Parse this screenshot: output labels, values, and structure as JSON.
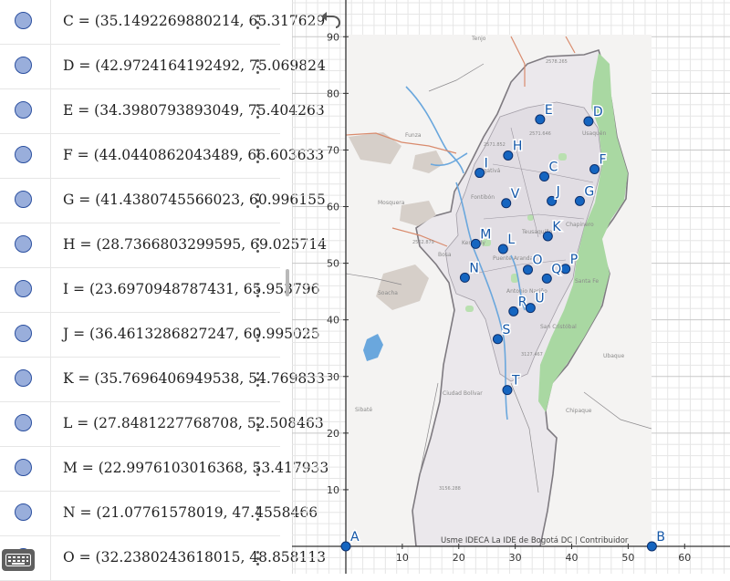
{
  "algebra_view": {
    "rows": [
      {
        "expr": "C = (35.1492269880214, 65.317629"
      },
      {
        "expr": "D = (42.9724164192492, 75.069824"
      },
      {
        "expr": "E = (34.3980793893049, 75.404263"
      },
      {
        "expr": "F = (44.0440862043489, 66.603633"
      },
      {
        "expr": "G = (41.4380745566023, 60.996155"
      },
      {
        "expr": "H = (28.7366803299595, 69.025714"
      },
      {
        "expr": "I = (23.6970948787431, 65.953796"
      },
      {
        "expr": "J = (36.4613286827247, 60.995025"
      },
      {
        "expr": "K = (35.7696406949538, 54.769833"
      },
      {
        "expr": "L = (27.8481227768708, 52.508463"
      },
      {
        "expr": "M = (22.9976103016368, 53.417933"
      },
      {
        "expr": "N = (21.07761578019, 47.4558466"
      },
      {
        "expr": "O = (32.2380243618015, 48.858113"
      }
    ]
  },
  "graphics_view": {
    "x_ticks": [
      "10",
      "20",
      "30",
      "40",
      "50",
      "60"
    ],
    "y_ticks": [
      "10",
      "20",
      "30",
      "40",
      "50",
      "60",
      "70",
      "80",
      "90"
    ],
    "attribution": "Usme IDECA La IDE de Bogotá DC | Contribuidor",
    "map_labels": {
      "tenjo": "Tenjo",
      "funza": "Funza",
      "mosquera": "Mosquera",
      "usaquen": "Usaquén",
      "engativa": "Engativá",
      "fontibon": "Fontibón",
      "chapinero": "Chapinero",
      "teusaquillo": "Teusaquillo",
      "kennedy": "Kennedy",
      "bosa": "Bosa",
      "puente_aranda": "Puente Aranda",
      "santa_fe": "Santa Fe",
      "soacha": "Soacha",
      "sibate": "Sibaté",
      "ciudad_bolivar": "Ciudad Bolívar",
      "san_cristobal": "San Cristóbal",
      "ubaque": "Ubaque",
      "chipaque": "Chipaque",
      "antonio_narino": "Antonio Nariño",
      "elev1": "2578.265",
      "elev2": "2562.879",
      "elev3": "3127.467",
      "elev4": "3156.288",
      "elev5": "2571.852",
      "elev6": "2571.646"
    },
    "points": [
      {
        "label": "A",
        "x": 0,
        "y": 0
      },
      {
        "label": "B",
        "x": 54.2,
        "y": 0
      },
      {
        "label": "C",
        "x": 35.1492269880214,
        "y": 65.317629
      },
      {
        "label": "D",
        "x": 42.9724164192492,
        "y": 75.069824
      },
      {
        "label": "E",
        "x": 34.3980793893049,
        "y": 75.404263
      },
      {
        "label": "F",
        "x": 44.0440862043489,
        "y": 66.603633
      },
      {
        "label": "G",
        "x": 41.4380745566023,
        "y": 60.996155
      },
      {
        "label": "H",
        "x": 28.7366803299595,
        "y": 69.025714
      },
      {
        "label": "I",
        "x": 23.6970948787431,
        "y": 65.953796
      },
      {
        "label": "J",
        "x": 36.4613286827247,
        "y": 60.995025
      },
      {
        "label": "K",
        "x": 35.7696406949538,
        "y": 54.769833
      },
      {
        "label": "L",
        "x": 27.8481227768708,
        "y": 52.508463
      },
      {
        "label": "M",
        "x": 22.9976103016368,
        "y": 53.417933
      },
      {
        "label": "N",
        "x": 21.07761578019,
        "y": 47.4558466
      },
      {
        "label": "O",
        "x": 32.2380243618015,
        "y": 48.858113
      },
      {
        "label": "P",
        "x": 38.9,
        "y": 49.0
      },
      {
        "label": "Q",
        "x": 35.6,
        "y": 47.3
      },
      {
        "label": "R",
        "x": 29.7,
        "y": 41.5
      },
      {
        "label": "U",
        "x": 32.7,
        "y": 42.1
      },
      {
        "label": "S",
        "x": 26.9,
        "y": 36.6
      },
      {
        "label": "T",
        "x": 28.6,
        "y": 27.6
      },
      {
        "label": "V",
        "x": 28.4,
        "y": 60.6
      }
    ]
  },
  "colors": {
    "point_fill": "#1565c0",
    "point_stroke": "#0d2f6b",
    "park": "#a6dba0",
    "urban": "#e6e2e7",
    "marker": "#99aedb"
  }
}
